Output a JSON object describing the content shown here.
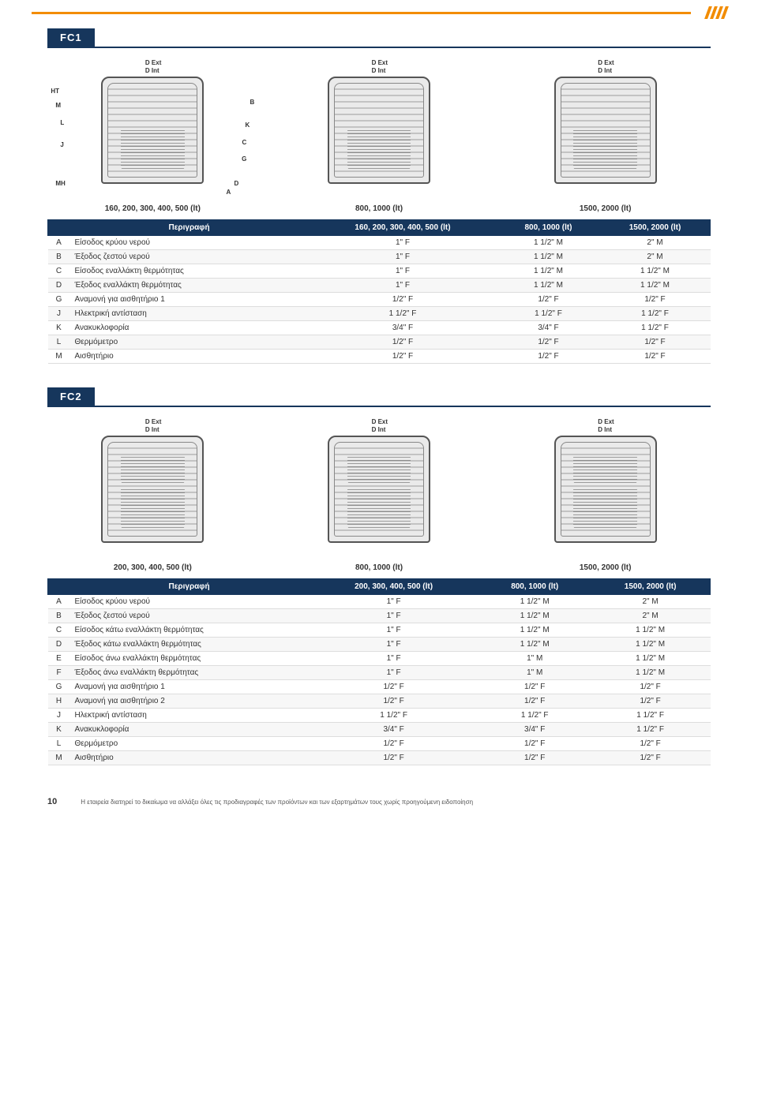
{
  "colors": {
    "accent": "#f28c00",
    "header": "#16365c",
    "line": "#dddddd"
  },
  "fc1": {
    "title": "FC1",
    "diagram_label_top": "D Ext",
    "diagram_label_top2": "D Int",
    "captions": [
      "160, 200, 300, 400, 500 (lt)",
      "800, 1000 (lt)",
      "1500, 2000 (lt)"
    ],
    "headers": [
      "",
      "Περιγραφή",
      "160, 200, 300, 400, 500 (lt)",
      "800, 1000 (lt)",
      "1500, 2000 (lt)"
    ],
    "rows": [
      [
        "A",
        "Είσοδος κρύου νερού",
        "1\" F",
        "1 1/2\" M",
        "2\" M"
      ],
      [
        "B",
        "Έξοδος ζεστού νερού",
        "1\" F",
        "1 1/2\" M",
        "2\" M"
      ],
      [
        "C",
        "Είσοδος εναλλάκτη θερμότητας",
        "1\" F",
        "1 1/2\" M",
        "1 1/2\" M"
      ],
      [
        "D",
        "Έξοδος εναλλάκτη θερμότητας",
        "1\" F",
        "1 1/2\" M",
        "1 1/2\" M"
      ],
      [
        "G",
        "Αναμονή για αισθητήριο 1",
        "1/2\" F",
        "1/2\" F",
        "1/2\" F"
      ],
      [
        "J",
        "Ηλεκτρική αντίσταση",
        "1 1/2\" F",
        "1 1/2\" F",
        "1 1/2\" F"
      ],
      [
        "K",
        "Ανακυκλοφορία",
        "3/4\" F",
        "3/4\" F",
        "1 1/2\" F"
      ],
      [
        "L",
        "Θερμόμετρο",
        "1/2\" F",
        "1/2\" F",
        "1/2\" F"
      ],
      [
        "M",
        "Αισθητήριο",
        "1/2\" F",
        "1/2\" F",
        "1/2\" F"
      ]
    ]
  },
  "fc2": {
    "title": "FC2",
    "diagram_label_top": "D Ext",
    "diagram_label_top2": "D Int",
    "captions": [
      "200, 300, 400, 500 (lt)",
      "800, 1000 (lt)",
      "1500, 2000 (lt)"
    ],
    "headers": [
      "",
      "Περιγραφή",
      "200, 300, 400, 500 (lt)",
      "800, 1000 (lt)",
      "1500, 2000 (lt)"
    ],
    "rows": [
      [
        "A",
        "Είσοδος κρύου νερού",
        "1\" F",
        "1 1/2\" M",
        "2\" M"
      ],
      [
        "B",
        "Έξοδος ζεστού νερού",
        "1\" F",
        "1 1/2\" M",
        "2\" M"
      ],
      [
        "C",
        "Είσοδος κάτω εναλλάκτη θερμότητας",
        "1\" F",
        "1 1/2\" M",
        "1 1/2\" M"
      ],
      [
        "D",
        "Έξοδος κάτω εναλλάκτη θερμότητας",
        "1\" F",
        "1 1/2\" M",
        "1 1/2\" M"
      ],
      [
        "E",
        "Είσοδος άνω εναλλάκτη θερμότητας",
        "1\" F",
        "1\" M",
        "1 1/2\" M"
      ],
      [
        "F",
        "Έξοδος άνω εναλλάκτη θερμότητας",
        "1\" F",
        "1\" M",
        "1 1/2\" M"
      ],
      [
        "G",
        "Αναμονή για αισθητήριο 1",
        "1/2\" F",
        "1/2\" F",
        "1/2\" F"
      ],
      [
        "H",
        "Αναμονή για αισθητήριο 2",
        "1/2\" F",
        "1/2\" F",
        "1/2\" F"
      ],
      [
        "J",
        "Ηλεκτρική αντίσταση",
        "1 1/2\" F",
        "1 1/2\" F",
        "1 1/2\" F"
      ],
      [
        "K",
        "Ανακυκλοφορία",
        "3/4\" F",
        "3/4\" F",
        "1 1/2\" F"
      ],
      [
        "L",
        "Θερμόμετρο",
        "1/2\" F",
        "1/2\" F",
        "1/2\" F"
      ],
      [
        "M",
        "Αισθητήριο",
        "1/2\" F",
        "1/2\" F",
        "1/2\" F"
      ]
    ]
  },
  "dim_letters_left": [
    "HT",
    "M",
    "L",
    "J",
    "MH"
  ],
  "dim_letters_right": [
    "B",
    "K",
    "C",
    "G",
    "D",
    "A"
  ],
  "footer": {
    "page": "10",
    "disclaimer": "Η εταιρεία διατηρεί το δικαίωμα να αλλάξει όλες τις προδιαγραφές των προϊόντων και των εξαρτημάτων τους χωρίς προηγούμενη ειδοποίηση"
  }
}
